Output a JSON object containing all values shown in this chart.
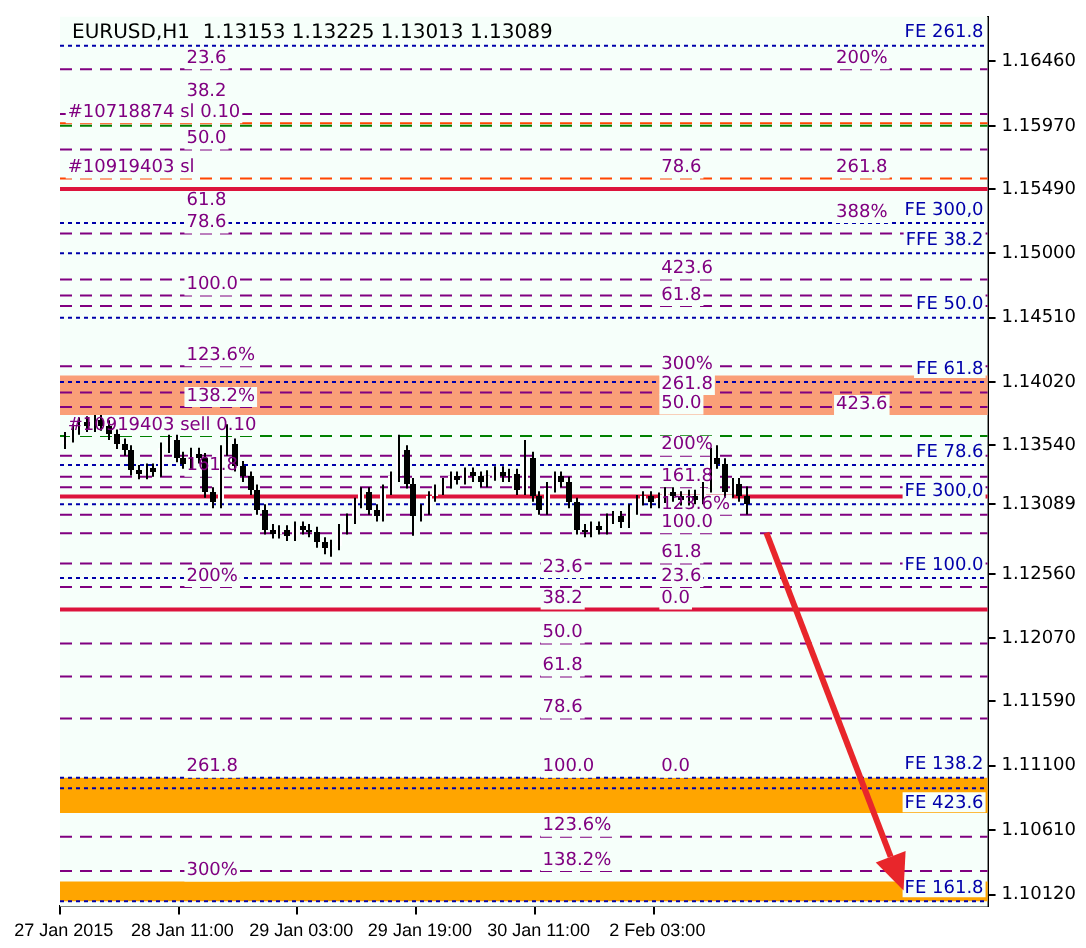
{
  "chart_data": {
    "type": "candlestick",
    "title": "EURUSD,H1  1.13153 1.13225 1.13013 1.13089",
    "categories": [
      "27 Jan 2015",
      null,
      null,
      null,
      null,
      null,
      null,
      null,
      null,
      null,
      null,
      null,
      null,
      null,
      null,
      null,
      "28 Jan 11:00",
      null,
      null,
      null,
      null,
      null,
      null,
      null,
      null,
      null,
      null,
      null,
      null,
      null,
      null,
      null,
      "29 Jan 03:00",
      null,
      null,
      null,
      null,
      null,
      null,
      null,
      null,
      null,
      null,
      null,
      null,
      null,
      null,
      null,
      "29 Jan 19:00",
      null,
      null,
      null,
      null,
      null,
      null,
      null,
      null,
      null,
      null,
      null,
      null,
      null,
      null,
      null,
      "30 Jan 11:00",
      null,
      null,
      null,
      null,
      null,
      null,
      null,
      null,
      null,
      null,
      null,
      null,
      null,
      null,
      null,
      "2 Feb 03:00",
      null,
      null,
      null,
      null,
      null,
      null,
      null,
      null,
      null,
      null,
      null,
      null,
      null,
      null,
      null,
      null,
      null,
      null,
      null,
      null,
      null,
      null,
      null,
      null,
      null,
      null,
      null,
      null,
      null,
      null,
      null,
      null,
      null,
      null,
      null,
      null,
      null,
      null,
      null,
      null,
      null,
      null,
      null,
      null
    ],
    "ohlc": [
      [
        1.1355,
        1.1364,
        1.1351,
        1.136
      ],
      [
        1.136,
        1.137,
        1.1356,
        1.1366
      ],
      [
        1.1366,
        1.1375,
        1.1362,
        1.1371
      ],
      [
        1.1371,
        1.1376,
        1.1364,
        1.1368
      ],
      [
        1.1368,
        1.1377,
        1.1364,
        1.1373
      ],
      [
        1.1373,
        1.1377,
        1.1365,
        1.1369
      ],
      [
        1.1369,
        1.1373,
        1.1358,
        1.1362
      ],
      [
        1.1362,
        1.1366,
        1.1351,
        1.1355
      ],
      [
        1.1355,
        1.1359,
        1.1346,
        1.135
      ],
      [
        1.135,
        1.1354,
        1.1331,
        1.1335
      ],
      [
        1.1335,
        1.1339,
        1.1328,
        1.1332
      ],
      [
        1.1332,
        1.134,
        1.1328,
        1.1336
      ],
      [
        1.1336,
        1.134,
        1.133,
        1.1334
      ],
      [
        1.1334,
        1.1356,
        1.133,
        1.1352
      ],
      [
        1.1352,
        1.1362,
        1.1348,
        1.1358
      ],
      [
        1.1358,
        1.1362,
        1.1341,
        1.1345
      ],
      [
        1.1345,
        1.1349,
        1.1336,
        1.134
      ],
      [
        1.134,
        1.1352,
        1.1336,
        1.1348
      ],
      [
        1.1348,
        1.1352,
        1.134,
        1.1344
      ],
      [
        1.1344,
        1.1348,
        1.1314,
        1.1318
      ],
      [
        1.1318,
        1.1322,
        1.1306,
        1.131
      ],
      [
        1.131,
        1.1354,
        1.1306,
        1.135
      ],
      [
        1.135,
        1.137,
        1.1346,
        1.1355
      ],
      [
        1.1355,
        1.1359,
        1.1334,
        1.1338
      ],
      [
        1.1338,
        1.1342,
        1.1326,
        1.133
      ],
      [
        1.133,
        1.1334,
        1.1316,
        1.132
      ],
      [
        1.132,
        1.1324,
        1.1301,
        1.1305
      ],
      [
        1.1305,
        1.1309,
        1.1286,
        1.129
      ],
      [
        1.129,
        1.1294,
        1.1283,
        1.1287
      ],
      [
        1.1287,
        1.1293,
        1.1283,
        1.1289
      ],
      [
        1.1289,
        1.1293,
        1.1281,
        1.1285
      ],
      [
        1.1285,
        1.1296,
        1.1281,
        1.1292
      ],
      [
        1.1292,
        1.1296,
        1.1286,
        1.129
      ],
      [
        1.129,
        1.1294,
        1.1284,
        1.1288
      ],
      [
        1.1288,
        1.1292,
        1.1276,
        1.128
      ],
      [
        1.128,
        1.1284,
        1.1271,
        1.1275
      ],
      [
        1.1275,
        1.1282,
        1.1269,
        1.1278
      ],
      [
        1.1278,
        1.1294,
        1.1274,
        1.129
      ],
      [
        1.129,
        1.1302,
        1.1286,
        1.1298
      ],
      [
        1.1298,
        1.1314,
        1.1294,
        1.131
      ],
      [
        1.131,
        1.1322,
        1.1306,
        1.1318
      ],
      [
        1.1318,
        1.1322,
        1.1301,
        1.1305
      ],
      [
        1.1305,
        1.1309,
        1.1296,
        1.13
      ],
      [
        1.13,
        1.1324,
        1.1296,
        1.132
      ],
      [
        1.132,
        1.1334,
        1.1316,
        1.133
      ],
      [
        1.133,
        1.1362,
        1.1326,
        1.135
      ],
      [
        1.135,
        1.1354,
        1.1321,
        1.1325
      ],
      [
        1.1325,
        1.1329,
        1.1285,
        1.13
      ],
      [
        1.13,
        1.1309,
        1.1296,
        1.1305
      ],
      [
        1.1305,
        1.1319,
        1.1301,
        1.1315
      ],
      [
        1.1315,
        1.1324,
        1.1311,
        1.132
      ],
      [
        1.132,
        1.1329,
        1.1316,
        1.1325
      ],
      [
        1.1325,
        1.1334,
        1.1321,
        1.133
      ],
      [
        1.133,
        1.1334,
        1.1324,
        1.1328
      ],
      [
        1.1328,
        1.1337,
        1.1324,
        1.1333
      ],
      [
        1.1333,
        1.1337,
        1.1326,
        1.133
      ],
      [
        1.133,
        1.1334,
        1.1322,
        1.1326
      ],
      [
        1.1326,
        1.1335,
        1.1322,
        1.1331
      ],
      [
        1.1331,
        1.1338,
        1.1327,
        1.1334
      ],
      [
        1.1334,
        1.1338,
        1.1326,
        1.133
      ],
      [
        1.133,
        1.1336,
        1.1326,
        1.1332
      ],
      [
        1.1332,
        1.1336,
        1.1316,
        1.132
      ],
      [
        1.132,
        1.1358,
        1.1316,
        1.1345
      ],
      [
        1.1345,
        1.1349,
        1.1311,
        1.1315
      ],
      [
        1.1315,
        1.1319,
        1.1301,
        1.1305
      ],
      [
        1.1305,
        1.1326,
        1.1301,
        1.1322
      ],
      [
        1.1322,
        1.1334,
        1.1318,
        1.133
      ],
      [
        1.133,
        1.1334,
        1.1322,
        1.1326
      ],
      [
        1.1326,
        1.133,
        1.1306,
        1.131
      ],
      [
        1.131,
        1.1314,
        1.1286,
        1.129
      ],
      [
        1.129,
        1.1294,
        1.1284,
        1.1288
      ],
      [
        1.1288,
        1.1296,
        1.1284,
        1.1292
      ],
      [
        1.1292,
        1.1296,
        1.1286,
        1.129
      ],
      [
        1.129,
        1.1302,
        1.1286,
        1.1298
      ],
      [
        1.1298,
        1.1304,
        1.1294,
        1.13
      ],
      [
        1.13,
        1.1304,
        1.1291,
        1.1295
      ],
      [
        1.1295,
        1.1309,
        1.1291,
        1.1305
      ],
      [
        1.1305,
        1.1316,
        1.1301,
        1.1312
      ],
      [
        1.1312,
        1.1319,
        1.1308,
        1.1315
      ],
      [
        1.1315,
        1.1319,
        1.1306,
        1.131
      ],
      [
        1.131,
        1.1318,
        1.1306,
        1.1314
      ],
      [
        1.1314,
        1.1322,
        1.131,
        1.1318
      ],
      [
        1.1318,
        1.1322,
        1.1311,
        1.1315
      ],
      [
        1.1315,
        1.1319,
        1.1308,
        1.1312
      ],
      [
        1.1312,
        1.132,
        1.1308,
        1.1316
      ],
      [
        1.1316,
        1.132,
        1.1309,
        1.1313
      ],
      [
        1.1313,
        1.1326,
        1.1309,
        1.1322
      ],
      [
        1.1322,
        1.1352,
        1.1318,
        1.1345
      ],
      [
        1.1345,
        1.1354,
        1.1336,
        1.134
      ],
      [
        1.134,
        1.1344,
        1.1314,
        1.1318
      ],
      [
        1.1318,
        1.1329,
        1.1314,
        1.1325
      ],
      [
        1.1325,
        1.1329,
        1.1311,
        1.1315
      ],
      [
        1.13153,
        1.13225,
        1.13013,
        1.13089
      ],
      null,
      null,
      null,
      null,
      null,
      null,
      null,
      null,
      null,
      null,
      null,
      null,
      null,
      null,
      null,
      null,
      null,
      null,
      null,
      null,
      null,
      null,
      null,
      null,
      null,
      null,
      null,
      null,
      null,
      null,
      null,
      null
    ],
    "ylim": [
      1.1003,
      1.168
    ],
    "yticks": [
      {
        "value": 1.1646,
        "label": "1.16460"
      },
      {
        "value": 1.1597,
        "label": "1.15970"
      },
      {
        "value": 1.1549,
        "label": "1.15490"
      },
      {
        "value": 1.15,
        "label": "1.15000"
      },
      {
        "value": 1.1451,
        "label": "1.14510"
      },
      {
        "value": 1.1402,
        "label": "1.14020"
      },
      {
        "value": 1.1354,
        "label": "1.13540"
      },
      {
        "value": 1.13089,
        "label": "1.13089"
      },
      {
        "value": 1.1256,
        "label": "1.12560"
      },
      {
        "value": 1.1207,
        "label": "1.12070"
      },
      {
        "value": 1.1159,
        "label": "1.11590"
      },
      {
        "value": 1.111,
        "label": "1.11100"
      },
      {
        "value": 1.1061,
        "label": "1.10610"
      },
      {
        "value": 1.1012,
        "label": "1.10120"
      }
    ],
    "grid": false,
    "bands": [
      {
        "axis": "y",
        "from": 1.1377,
        "to": 1.1407,
        "color": "#fa9f78"
      },
      {
        "axis": "y",
        "from": 1.1074,
        "to": 1.1101,
        "color": "#ffa500"
      },
      {
        "axis": "y",
        "from": 1.1007,
        "to": 1.1022,
        "color": "#ffa500"
      }
    ],
    "ref_lines": [
      {
        "axis": "y",
        "value": 1.1658,
        "label": "FE 261.8",
        "color": "#0000aa",
        "line_style": "dotted"
      },
      {
        "axis": "y",
        "value": 1.1523,
        "label": "FE 300,0",
        "color": "#0000aa",
        "line_style": "dotted"
      },
      {
        "axis": "y",
        "value": 1.15,
        "label": "FFE 38.2",
        "color": "#0000aa",
        "line_style": "dotted"
      },
      {
        "axis": "y",
        "value": 1.1451,
        "label": "FE 50.0",
        "color": "#0000aa",
        "line_style": "dotted"
      },
      {
        "axis": "y",
        "value": 1.1402,
        "label": "FE 61.8",
        "color": "#0000aa",
        "line_style": "dotted"
      },
      {
        "axis": "y",
        "value": 1.1339,
        "label": "FE 78.6",
        "color": "#0000aa",
        "line_style": "dotted"
      },
      {
        "axis": "y",
        "value": 1.1309,
        "label": "FE 300,0",
        "color": "#0000aa",
        "line_style": "dotted"
      },
      {
        "axis": "y",
        "value": 1.1253,
        "label": "FE 100.0",
        "color": "#0000aa",
        "line_style": "dotted"
      },
      {
        "axis": "y",
        "value": 1.1101,
        "label": "FE 138.2",
        "color": "#0000aa",
        "line_style": "dotted"
      },
      {
        "axis": "y",
        "value": 1.1093,
        "label": "FE 423.6",
        "color": "#0000aa",
        "line_style": "dotted"
      },
      {
        "axis": "y",
        "value": 1.1007,
        "label": "FE 161.8",
        "color": "#0000aa",
        "line_style": "dotted"
      },
      {
        "axis": "y",
        "value": 1.1599,
        "color": "#ff4500",
        "line_style": "dashed"
      },
      {
        "axis": "y",
        "value": 1.1597,
        "color": "#008000",
        "line_style": "dashed"
      },
      {
        "axis": "y",
        "value": 1.1557,
        "color": "#ff4500",
        "line_style": "dashed"
      },
      {
        "axis": "y",
        "value": 1.1549,
        "color": "#dc143c",
        "line_style": "solid"
      },
      {
        "axis": "y",
        "value": 1.1361,
        "color": "#008000",
        "line_style": "dashed"
      },
      {
        "axis": "y",
        "value": 1.1315,
        "color": "#dc143c",
        "line_style": "solid"
      },
      {
        "axis": "y",
        "value": 1.1229,
        "color": "#dc143c",
        "line_style": "solid"
      },
      {
        "axis": "y",
        "value": 1.164,
        "color": "#800080",
        "line_style": "dashed"
      },
      {
        "axis": "y",
        "value": 1.1606,
        "color": "#800080",
        "line_style": "dashed"
      },
      {
        "axis": "y",
        "value": 1.1579,
        "color": "#800080",
        "line_style": "dashed"
      },
      {
        "axis": "y",
        "value": 1.1515,
        "color": "#800080",
        "line_style": "dashed"
      },
      {
        "axis": "y",
        "value": 1.148,
        "color": "#800080",
        "line_style": "dashed"
      },
      {
        "axis": "y",
        "value": 1.1468,
        "color": "#800080",
        "line_style": "dashed"
      },
      {
        "axis": "y",
        "value": 1.146,
        "color": "#800080",
        "line_style": "dashed"
      },
      {
        "axis": "y",
        "value": 1.1414,
        "color": "#800080",
        "line_style": "dashed"
      },
      {
        "axis": "y",
        "value": 1.1394,
        "color": "#800080",
        "line_style": "dashed"
      },
      {
        "axis": "y",
        "value": 1.1383,
        "color": "#800080",
        "line_style": "dashed"
      },
      {
        "axis": "y",
        "value": 1.1346,
        "color": "#800080",
        "line_style": "dashed"
      },
      {
        "axis": "y",
        "value": 1.133,
        "color": "#800080",
        "line_style": "dashed"
      },
      {
        "axis": "y",
        "value": 1.1322,
        "color": "#800080",
        "line_style": "dashed"
      },
      {
        "axis": "y",
        "value": 1.1301,
        "color": "#800080",
        "line_style": "dashed"
      },
      {
        "axis": "y",
        "value": 1.1287,
        "color": "#800080",
        "line_style": "dashed"
      },
      {
        "axis": "y",
        "value": 1.1264,
        "color": "#800080",
        "line_style": "dashed"
      },
      {
        "axis": "y",
        "value": 1.1246,
        "color": "#800080",
        "line_style": "dashed"
      },
      {
        "axis": "y",
        "value": 1.1203,
        "color": "#800080",
        "line_style": "dashed"
      },
      {
        "axis": "y",
        "value": 1.1178,
        "color": "#800080",
        "line_style": "dashed"
      },
      {
        "axis": "y",
        "value": 1.1146,
        "color": "#800080",
        "line_style": "dashed"
      },
      {
        "axis": "y",
        "value": 1.1056,
        "color": "#800080",
        "line_style": "dashed"
      },
      {
        "axis": "y",
        "value": 1.103,
        "color": "#800080",
        "line_style": "dashed"
      }
    ],
    "annotations": [
      {
        "text": "#10718874 sl 0.10",
        "x": "27 Jan 2015",
        "y": 1.1599
      },
      {
        "text": "#10919403 sl",
        "x": "27 Jan 2015",
        "y": 1.1557
      },
      {
        "text": "#10919403 sell 0.10",
        "x": "27 Jan 2015",
        "y": 1.1361
      },
      {
        "text": "23.6",
        "x": "28 Jan 11:00",
        "y": 1.164
      },
      {
        "text": "38.2",
        "x": "28 Jan 11:00",
        "y": 1.1606
      },
      {
        "text": "50.0",
        "x": "28 Jan 11:00",
        "y": 1.1579
      },
      {
        "text": "61.8",
        "x": "28 Jan 11:00",
        "y": 1.1549
      },
      {
        "text": "78.6",
        "x": "28 Jan 11:00",
        "y": 1.1515
      },
      {
        "text": "100.0",
        "x": "28 Jan 11:00",
        "y": 1.1468
      },
      {
        "text": "123.6%",
        "x": "28 Jan 11:00",
        "y": 1.1414
      },
      {
        "text": "138.2%",
        "x": "28 Jan 11:00",
        "y": 1.1383
      },
      {
        "text": "161.8",
        "x": "28 Jan 11:00",
        "y": 1.133
      },
      {
        "text": "200%",
        "x": "28 Jan 11:00",
        "y": 1.1246
      },
      {
        "text": "261.8",
        "x": "28 Jan 11:00",
        "y": 1.1101
      },
      {
        "text": "300%",
        "x": "28 Jan 11:00",
        "y": 1.1022
      },
      {
        "text": "23.6",
        "x": "30 Jan 11:00",
        "y": 1.1253
      },
      {
        "text": "38.2",
        "x": "30 Jan 11:00",
        "y": 1.1229
      },
      {
        "text": "50.0",
        "x": "30 Jan 11:00",
        "y": 1.1203
      },
      {
        "text": "61.8",
        "x": "30 Jan 11:00",
        "y": 1.1178
      },
      {
        "text": "78.6",
        "x": "30 Jan 11:00",
        "y": 1.1146
      },
      {
        "text": "100.0",
        "x": "30 Jan 11:00",
        "y": 1.1101
      },
      {
        "text": "123.6%",
        "x": "30 Jan 11:00",
        "y": 1.1056
      },
      {
        "text": "138.2%",
        "x": "30 Jan 11:00",
        "y": 1.103
      },
      {
        "text": "78.6",
        "x": "2 Feb 03:00",
        "y": 1.1557
      },
      {
        "text": "423.6",
        "x": "2 Feb 03:00",
        "y": 1.148
      },
      {
        "text": "61.8",
        "x": "2 Feb 03:00",
        "y": 1.146
      },
      {
        "text": "300%",
        "x": "2 Feb 03:00",
        "y": 1.1407
      },
      {
        "text": "50.0",
        "x": "2 Feb 03:00",
        "y": 1.1394
      },
      {
        "text": "261.8",
        "x": "2 Feb 03:00",
        "y": 1.1383
      },
      {
        "text": "200%",
        "x": "2 Feb 03:00",
        "y": 1.1346
      },
      {
        "text": "161.8",
        "x": "2 Feb 03:00",
        "y": 1.1322
      },
      {
        "text": "123.6%",
        "x": "2 Feb 03:00",
        "y": 1.1301
      },
      {
        "text": "100.0",
        "x": "2 Feb 03:00",
        "y": 1.1287
      },
      {
        "text": "61.8",
        "x": "2 Feb 03:00",
        "y": 1.1264
      },
      {
        "text": "23.6",
        "x": "2 Feb 03:00",
        "y": 1.1246
      },
      {
        "text": "0.0",
        "x": "2 Feb 03:00",
        "y": 1.1229
      },
      {
        "text": "0.0",
        "x": "2 Feb 03:00",
        "y": 1.1101
      },
      {
        "text": "200%",
        "y": 1.164
      },
      {
        "text": "261.8",
        "y": 1.1557
      },
      {
        "text": "388%",
        "y": 1.1523
      },
      {
        "text": "423.6",
        "y": 1.1377
      }
    ]
  }
}
